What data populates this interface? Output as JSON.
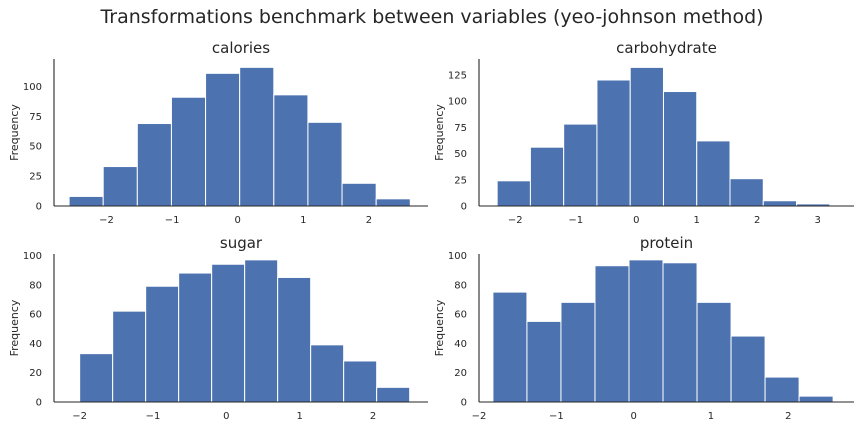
{
  "figure": {
    "title": "Transformations benchmark between variables (yeo-johnson method)",
    "bar_color": "#4c72b0"
  },
  "chart_data": [
    {
      "type": "bar",
      "title": "calories",
      "xlabel": "",
      "ylabel": "Frequency",
      "xlim": [
        -2.8,
        2.9
      ],
      "ylim": [
        0,
        123
      ],
      "xticks": [
        -2,
        -1,
        0,
        1,
        2
      ],
      "xtick_labels": [
        "−2",
        "−1",
        "0",
        "1",
        "2"
      ],
      "yticks": [
        0,
        25,
        50,
        75,
        100
      ],
      "ytick_labels": [
        "0",
        "25",
        "50",
        "75",
        "100"
      ],
      "bin_edges": [
        -2.57,
        -2.05,
        -1.53,
        -1.01,
        -0.49,
        0.03,
        0.55,
        1.07,
        1.59,
        2.11,
        2.63
      ],
      "values": [
        8,
        33,
        69,
        91,
        111,
        116,
        93,
        70,
        19,
        6
      ]
    },
    {
      "type": "bar",
      "title": "carbohydrate",
      "xlabel": "",
      "ylabel": "Frequency",
      "xlim": [
        -2.6,
        3.6
      ],
      "ylim": [
        0,
        140
      ],
      "xticks": [
        -2,
        -1,
        0,
        1,
        2,
        3
      ],
      "xtick_labels": [
        "−2",
        "−1",
        "0",
        "1",
        "2",
        "3"
      ],
      "yticks": [
        0,
        25,
        50,
        75,
        100,
        125
      ],
      "ytick_labels": [
        "0",
        "25",
        "50",
        "75",
        "100",
        "125"
      ],
      "bin_edges": [
        -2.3,
        -1.75,
        -1.2,
        -0.65,
        -0.1,
        0.45,
        1.0,
        1.55,
        2.1,
        2.65,
        3.2
      ],
      "values": [
        24,
        56,
        78,
        120,
        132,
        109,
        62,
        26,
        5,
        2
      ]
    },
    {
      "type": "bar",
      "title": "sugar",
      "xlabel": "",
      "ylabel": "Frequency",
      "xlim": [
        -2.35,
        2.75
      ],
      "ylim": [
        0,
        101
      ],
      "xticks": [
        -2,
        -1,
        0,
        1,
        2
      ],
      "xtick_labels": [
        "−2",
        "−1",
        "0",
        "1",
        "2"
      ],
      "yticks": [
        0,
        20,
        40,
        60,
        80,
        100
      ],
      "ytick_labels": [
        "0",
        "20",
        "40",
        "60",
        "80",
        "100"
      ],
      "bin_edges": [
        -2.0,
        -1.55,
        -1.1,
        -0.65,
        -0.2,
        0.25,
        0.7,
        1.15,
        1.6,
        2.05,
        2.5
      ],
      "values": [
        33,
        62,
        79,
        88,
        94,
        97,
        85,
        39,
        28,
        10
      ]
    },
    {
      "type": "bar",
      "title": "protein",
      "xlabel": "",
      "ylabel": "Frequency",
      "xlim": [
        -2.0,
        2.85
      ],
      "ylim": [
        0,
        101
      ],
      "xticks": [
        -2,
        -1,
        0,
        1,
        2
      ],
      "xtick_labels": [
        "−2",
        "−1",
        "0",
        "1",
        "2"
      ],
      "yticks": [
        0,
        20,
        40,
        60,
        80,
        100
      ],
      "ytick_labels": [
        "0",
        "20",
        "40",
        "60",
        "80",
        "100"
      ],
      "bin_edges": [
        -1.82,
        -1.38,
        -0.94,
        -0.5,
        -0.06,
        0.38,
        0.82,
        1.26,
        1.7,
        2.14,
        2.58
      ],
      "values": [
        75,
        55,
        68,
        93,
        97,
        95,
        68,
        45,
        17,
        4
      ]
    }
  ]
}
